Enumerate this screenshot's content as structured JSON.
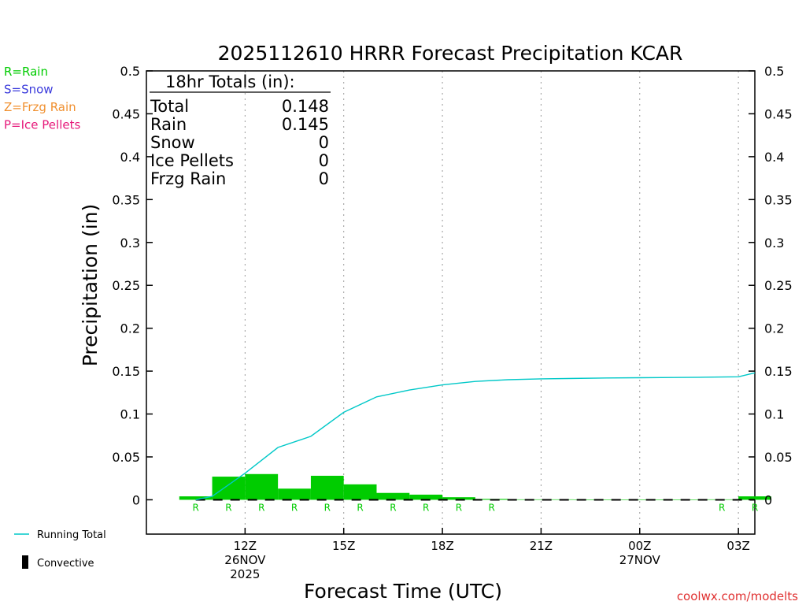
{
  "chart_data": {
    "type": "bar",
    "title": "2025112610 HRRR Forecast Precipitation KCAR",
    "xlabel": "Forecast Time (UTC)",
    "ylabel": "Precipitation (in)",
    "ylim": [
      -0.04,
      0.5
    ],
    "y_ticks": [
      "0",
      "0.05",
      "0.1",
      "0.15",
      "0.2",
      "0.25",
      "0.3",
      "0.35",
      "0.4",
      "0.45",
      "0.5"
    ],
    "grid": "vertical dotted lines at labeled hours",
    "x_ticks": [
      {
        "hour": 12,
        "lines": [
          "12Z",
          "26NOV",
          "2025"
        ]
      },
      {
        "hour": 15,
        "lines": [
          "15Z"
        ]
      },
      {
        "hour": 18,
        "lines": [
          "18Z"
        ]
      },
      {
        "hour": 21,
        "lines": [
          "21Z"
        ]
      },
      {
        "hour": 24,
        "lines": [
          "00Z",
          "27NOV"
        ]
      },
      {
        "hour": 27,
        "lines": [
          "03Z"
        ]
      }
    ],
    "x_range_hours": [
      9.0,
      27.5
    ],
    "hours": [
      11,
      12,
      13,
      14,
      15,
      16,
      17,
      18,
      19,
      20,
      21,
      22,
      23,
      24,
      25,
      26,
      27,
      28
    ],
    "hourly_precip": [
      0.004,
      0.027,
      0.03,
      0.013,
      0.028,
      0.018,
      0.008,
      0.006,
      0.003,
      0.001,
      0.0005,
      0.0005,
      0.0003,
      0.0003,
      0.0003,
      0.0003,
      0.0005,
      0.004
    ],
    "precip_type": [
      "R",
      "R",
      "R",
      "R",
      "R",
      "R",
      "R",
      "R",
      "R",
      "R",
      "",
      "",
      "",
      "",
      "",
      "",
      "R",
      "R"
    ],
    "running_total": {
      "name": "Running Total",
      "x": [
        10.5,
        11,
        12,
        13,
        14,
        15,
        16,
        17,
        18,
        19,
        20,
        21,
        22,
        23,
        24,
        25,
        26,
        27,
        28
      ],
      "values": [
        0.0,
        0.004,
        0.031,
        0.061,
        0.074,
        0.102,
        0.12,
        0.128,
        0.134,
        0.138,
        0.14,
        0.141,
        0.1415,
        0.142,
        0.1423,
        0.1426,
        0.1429,
        0.1434,
        0.148
      ]
    },
    "convective": [],
    "legend_text": [
      {
        "text": "R=Rain",
        "color": "#00cc00"
      },
      {
        "text": "S=Snow",
        "color": "#3c3cdc"
      },
      {
        "text": "Z=Frzg Rain",
        "color": "#f09030"
      },
      {
        "text": "P=Ice Pellets",
        "color": "#e6187a"
      }
    ],
    "bottom_legend": [
      {
        "text": "Running Total",
        "color": "#00c8c8",
        "kind": "line"
      },
      {
        "text": "Convective",
        "color": "#000000",
        "kind": "bar"
      }
    ],
    "totals_box": {
      "header": "18hr Totals (in):",
      "rows": [
        {
          "label": "Total",
          "value": "0.148"
        },
        {
          "label": "Rain",
          "value": "0.145"
        },
        {
          "label": "Snow",
          "value": "0"
        },
        {
          "label": "Ice Pellets",
          "value": "0"
        },
        {
          "label": "Frzg Rain",
          "value": "0"
        }
      ]
    },
    "credit": "coolwx.com/modelts",
    "colors": {
      "bar": "#00cc00",
      "line": "#00c8c8",
      "credit": "#e03030"
    }
  }
}
